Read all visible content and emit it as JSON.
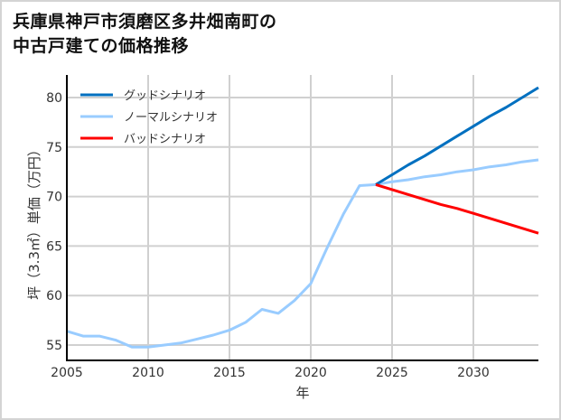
{
  "title": {
    "line1": "兵庫県神戸市須磨区多井畑南町の",
    "line2": "中古戸建ての価格推移"
  },
  "colors": {
    "good": "#0070c0",
    "normal": "#99ccff",
    "bad": "#ff0000",
    "grid": "#d0d0d0",
    "axis": "#000000"
  },
  "chart_data": {
    "type": "line",
    "title": "兵庫県神戸市須磨区多井畑南町の中古戸建ての価格推移",
    "xlabel": "年",
    "ylabel": "坪（3.3㎡）単価（万円）",
    "xlim": [
      2005,
      2034
    ],
    "ylim": [
      53.5,
      82.5
    ],
    "xticks": [
      2005,
      2010,
      2015,
      2020,
      2025,
      2030
    ],
    "yticks": [
      55,
      60,
      65,
      70,
      75,
      80
    ],
    "grid": true,
    "legend_position": "upper left",
    "series": [
      {
        "name": "グッドシナリオ",
        "color": "#0070c0",
        "x": [
          2024,
          2025,
          2026,
          2027,
          2028,
          2029,
          2030,
          2031,
          2032,
          2033,
          2034
        ],
        "values": [
          71.2,
          72.2,
          73.2,
          74.1,
          75.1,
          76.1,
          77.1,
          78.1,
          79.0,
          80.0,
          81.0
        ]
      },
      {
        "name": "ノーマルシナリオ",
        "color": "#99ccff",
        "x": [
          2005,
          2006,
          2007,
          2008,
          2009,
          2010,
          2011,
          2012,
          2013,
          2014,
          2015,
          2016,
          2017,
          2018,
          2019,
          2020,
          2021,
          2022,
          2023,
          2024,
          2025,
          2026,
          2027,
          2028,
          2029,
          2030,
          2031,
          2032,
          2033,
          2034
        ],
        "values": [
          56.4,
          55.9,
          55.9,
          55.5,
          54.8,
          54.8,
          55.0,
          55.2,
          55.6,
          56.0,
          56.5,
          57.3,
          58.6,
          58.2,
          59.5,
          61.2,
          64.8,
          68.2,
          71.1,
          71.2,
          71.5,
          71.7,
          72.0,
          72.2,
          72.5,
          72.7,
          73.0,
          73.2,
          73.5,
          73.7
        ]
      },
      {
        "name": "バッドシナリオ",
        "color": "#ff0000",
        "x": [
          2024,
          2025,
          2026,
          2027,
          2028,
          2029,
          2030,
          2031,
          2032,
          2033,
          2034
        ],
        "values": [
          71.2,
          70.7,
          70.2,
          69.7,
          69.2,
          68.8,
          68.3,
          67.8,
          67.3,
          66.8,
          66.3
        ]
      }
    ]
  }
}
